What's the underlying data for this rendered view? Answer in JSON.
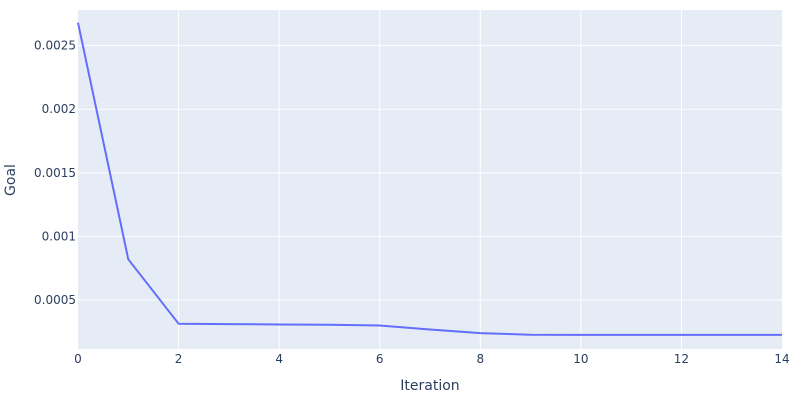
{
  "chart_data": {
    "type": "line",
    "title": "",
    "xlabel": "Iteration",
    "ylabel": "Goal",
    "xlim": [
      0,
      14
    ],
    "ylim": [
      0.000115,
      0.00278
    ],
    "grid": true,
    "x_ticks": [
      0,
      2,
      4,
      6,
      8,
      10,
      12,
      14
    ],
    "x_tick_labels": [
      "0",
      "2",
      "4",
      "6",
      "8",
      "10",
      "12",
      "14"
    ],
    "y_ticks": [
      0.0005,
      0.001,
      0.0015,
      0.002,
      0.0025
    ],
    "y_tick_labels": [
      "0.0005",
      "0.001",
      "0.0015",
      "0.002",
      "0.0025"
    ],
    "series": [
      {
        "color": "#636efa",
        "x": [
          0,
          1,
          2,
          3,
          4,
          5,
          6,
          7,
          8,
          9,
          10,
          11,
          12,
          13,
          14
        ],
        "y": [
          0.00268,
          0.00082,
          0.000314,
          0.000311,
          0.000308,
          0.000306,
          0.0003,
          0.000268,
          0.00024,
          0.000227,
          0.000226,
          0.000226,
          0.000226,
          0.000226,
          0.000226
        ]
      }
    ],
    "colors": {
      "plot_background": "#e5ecf6",
      "grid": "#ffffff",
      "text": "#2a3f5f"
    }
  }
}
